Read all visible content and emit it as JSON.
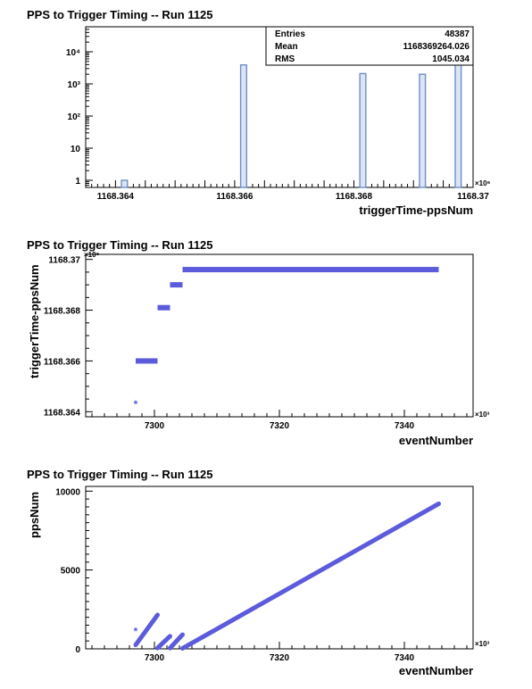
{
  "chart_data": [
    {
      "type": "bar",
      "title": "PPS to Trigger Timing -- Run 1125",
      "xlabel": "triggerTime-ppsNum",
      "ylabel": "",
      "x_multiplier": "×10⁶",
      "log_y": true,
      "xlim": [
        1168.3635,
        1168.37
      ],
      "ylim": [
        0.6,
        60000
      ],
      "x_ticks": [
        1168.364,
        1168.366,
        1168.368,
        1168.37
      ],
      "x_tick_labels": [
        "1168.364",
        "1168.366",
        "1168.368",
        "1168.37"
      ],
      "y_ticks": [
        1,
        10,
        100,
        1000,
        10000
      ],
      "y_tick_labels": [
        "1",
        "10",
        "10²",
        "10³",
        "10⁴"
      ],
      "bars": [
        {
          "x": 1168.3641,
          "width": 0.0001,
          "value": 1
        },
        {
          "x": 1168.3661,
          "width": 0.0001,
          "value": 3900
        },
        {
          "x": 1168.3681,
          "width": 0.0001,
          "value": 2100
        },
        {
          "x": 1168.3691,
          "width": 0.0001,
          "value": 2000
        },
        {
          "x": 1168.3697,
          "width": 0.0001,
          "value": 38000
        }
      ],
      "stats": {
        "entries_label": "Entries",
        "entries_value": "48387",
        "mean_label": "Mean",
        "mean_value": "1168369264.026",
        "rms_label": "RMS",
        "rms_value": "1045.034"
      },
      "color": "#6f8fc4"
    },
    {
      "type": "scatter",
      "title": "PPS to Trigger Timing -- Run 1125",
      "xlabel": "eventNumber",
      "ylabel": "triggerTime-ppsNum",
      "x_multiplier": "×10³",
      "y_multiplier": "×10⁶",
      "xlim": [
        7289,
        7351
      ],
      "ylim": [
        1168.3638,
        1168.3702
      ],
      "x_ticks": [
        7300,
        7320,
        7340
      ],
      "x_tick_labels": [
        "7300",
        "7320",
        "7340"
      ],
      "y_ticks": [
        1168.364,
        1168.366,
        1168.368,
        1168.37
      ],
      "y_tick_labels": [
        "1168.364",
        "1168.366",
        "1168.368",
        "1168.37"
      ],
      "segments": [
        {
          "x_start": 7297.0,
          "x_end": 7297.0,
          "y": 1168.3643
        },
        {
          "x_start": 7297.0,
          "x_end": 7300.5,
          "y": 1168.366
        },
        {
          "x_start": 7300.5,
          "x_end": 7302.5,
          "y": 1168.3681
        },
        {
          "x_start": 7302.5,
          "x_end": 7304.5,
          "y": 1168.369
        },
        {
          "x_start": 7304.5,
          "x_end": 7345.5,
          "y": 1168.3696
        }
      ],
      "color": "#5b5bdc"
    },
    {
      "type": "scatter",
      "title": "PPS to Trigger Timing -- Run 1125",
      "xlabel": "eventNumber",
      "ylabel": "ppsNum",
      "x_multiplier": "×10³",
      "xlim": [
        7289,
        7351
      ],
      "ylim": [
        0,
        10300
      ],
      "x_ticks": [
        7300,
        7320,
        7340
      ],
      "x_tick_labels": [
        "7300",
        "7320",
        "7340"
      ],
      "y_ticks": [
        0,
        5000,
        10000
      ],
      "y_tick_labels": [
        "0",
        "5000",
        "10000"
      ],
      "lines": [
        {
          "x_start": 7297.0,
          "y_start": 250,
          "x_end": 7300.5,
          "y_end": 2150
        },
        {
          "x_start": 7300.5,
          "y_start": 50,
          "x_end": 7302.5,
          "y_end": 800
        },
        {
          "x_start": 7302.5,
          "y_start": 50,
          "x_end": 7304.5,
          "y_end": 900
        },
        {
          "x_start": 7304.5,
          "y_start": 30,
          "x_end": 7345.5,
          "y_end": 9200
        }
      ],
      "points": [
        {
          "x": 7297.0,
          "y": 1100
        }
      ],
      "color": "#5b5bdc"
    }
  ]
}
